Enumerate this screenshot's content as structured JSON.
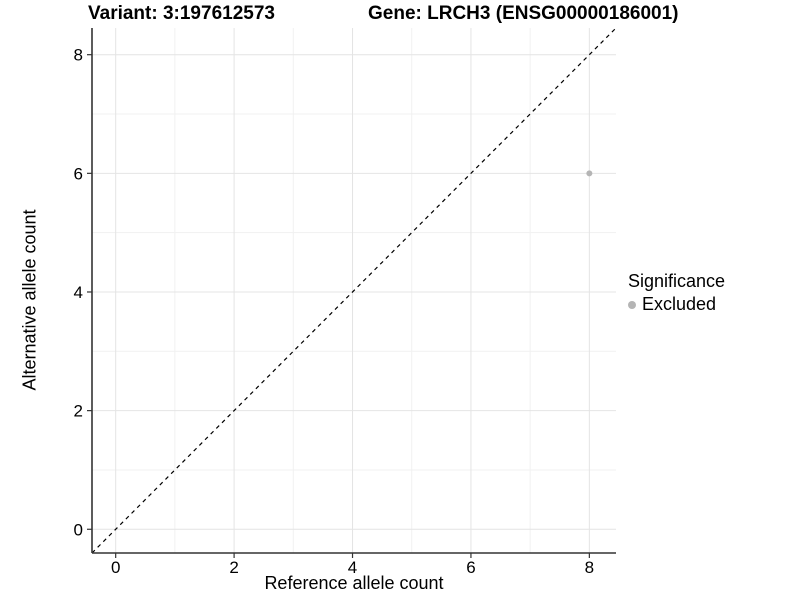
{
  "titles": {
    "left": "Variant: 3:197612573",
    "right": "Gene: LRCH3 (ENSG00000186001)"
  },
  "chart_data": {
    "type": "scatter",
    "title_left": "Variant: 3:197612573",
    "title_right": "Gene: LRCH3 (ENSG00000186001)",
    "xlabel": "Reference allele count",
    "ylabel": "Alternative allele count",
    "xlim": [
      -0.4,
      8.45
    ],
    "ylim": [
      -0.4,
      8.45
    ],
    "x_ticks": [
      0,
      2,
      4,
      6,
      8
    ],
    "y_ticks": [
      0,
      2,
      4,
      6,
      8
    ],
    "x_minor_ticks": [
      1,
      3,
      5,
      7
    ],
    "y_minor_ticks": [
      1,
      3,
      5,
      7
    ],
    "grid": true,
    "points": [
      {
        "x": 8,
        "y": 6,
        "series": "Excluded"
      }
    ],
    "reference_line": {
      "type": "identity",
      "slope": 1,
      "intercept": 0,
      "dash": true
    },
    "legend": {
      "title": "Significance",
      "position": "right",
      "items": [
        {
          "label": "Excluded",
          "color": "#b5b5b5"
        }
      ]
    }
  },
  "colors": {
    "background": "#ffffff",
    "text": "#000000",
    "axis": "#333333",
    "grid_major": "#e4e4e4",
    "grid_minor": "#f1f1f1",
    "point": "#b5b5b5",
    "reference_line": "#000000"
  }
}
